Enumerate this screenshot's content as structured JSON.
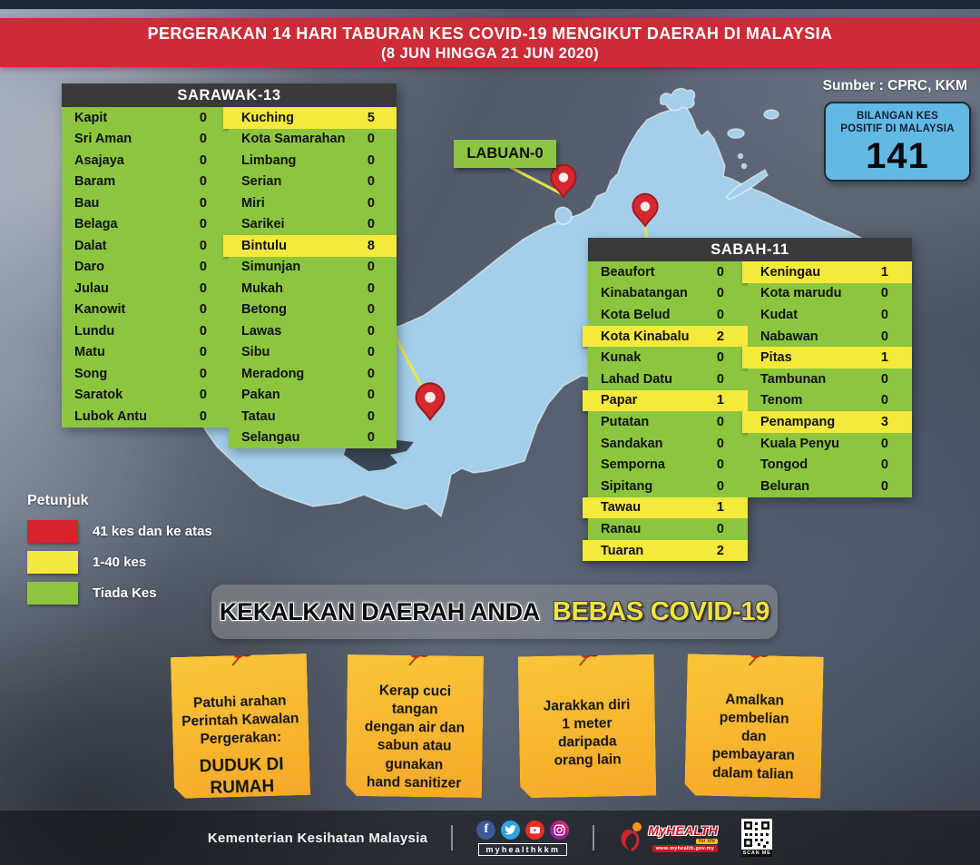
{
  "banner": {
    "line1": "PERGERAKAN 14 HARI TABURAN KES COVID-19 MENGIKUT DAERAH DI MALAYSIA",
    "line2": "(8 JUN HINGGA 21  JUN 2020)"
  },
  "source": "Sumber : CPRC, KKM",
  "total_box": {
    "label": "BILANGAN KES\nPOSITIF DI MALAYSIA",
    "value": "141"
  },
  "labuan_label": "LABUAN-0",
  "tables": {
    "sarawak": {
      "title": "SARAWAK-13",
      "left": [
        {
          "name": "Kapit",
          "value": "0"
        },
        {
          "name": "Sri Aman",
          "value": "0"
        },
        {
          "name": "Asajaya",
          "value": "0"
        },
        {
          "name": "Baram",
          "value": "0"
        },
        {
          "name": "Bau",
          "value": "0"
        },
        {
          "name": "Belaga",
          "value": "0"
        },
        {
          "name": "Dalat",
          "value": "0"
        },
        {
          "name": "Daro",
          "value": "0"
        },
        {
          "name": "Julau",
          "value": "0"
        },
        {
          "name": "Kanowit",
          "value": "0"
        },
        {
          "name": "Lundu",
          "value": "0"
        },
        {
          "name": "Matu",
          "value": "0"
        },
        {
          "name": "Song",
          "value": "0"
        },
        {
          "name": "Saratok",
          "value": "0"
        },
        {
          "name": "Lubok Antu",
          "value": "0"
        }
      ],
      "right": [
        {
          "name": "Kuching",
          "value": "5",
          "hl": true
        },
        {
          "name": "Kota Samarahan",
          "value": "0"
        },
        {
          "name": "Limbang",
          "value": "0"
        },
        {
          "name": "Serian",
          "value": "0"
        },
        {
          "name": "Miri",
          "value": "0"
        },
        {
          "name": "Sarikei",
          "value": "0"
        },
        {
          "name": "Bintulu",
          "value": "8",
          "hl": true
        },
        {
          "name": "Simunjan",
          "value": "0"
        },
        {
          "name": "Mukah",
          "value": "0"
        },
        {
          "name": "Betong",
          "value": "0"
        },
        {
          "name": "Lawas",
          "value": "0"
        },
        {
          "name": "Sibu",
          "value": "0"
        },
        {
          "name": "Meradong",
          "value": "0"
        },
        {
          "name": "Pakan",
          "value": "0"
        },
        {
          "name": "Tatau",
          "value": "0"
        },
        {
          "name": "Selangau",
          "value": "0"
        }
      ]
    },
    "sabah": {
      "title": "SABAH-11",
      "left": [
        {
          "name": "Beaufort",
          "value": "0"
        },
        {
          "name": "Kinabatangan",
          "value": "0"
        },
        {
          "name": "Kota Belud",
          "value": "0"
        },
        {
          "name": "Kota Kinabalu",
          "value": "2",
          "hl": true
        },
        {
          "name": "Kunak",
          "value": "0"
        },
        {
          "name": "Lahad Datu",
          "value": "0"
        },
        {
          "name": "Papar",
          "value": "1",
          "hl": true
        },
        {
          "name": "Putatan",
          "value": "0"
        },
        {
          "name": "Sandakan",
          "value": "0"
        },
        {
          "name": "Semporna",
          "value": "0"
        },
        {
          "name": "Sipitang",
          "value": "0"
        },
        {
          "name": "Tawau",
          "value": "1",
          "hl": true
        },
        {
          "name": "Ranau",
          "value": "0"
        },
        {
          "name": "Tuaran",
          "value": "2",
          "hl": true
        }
      ],
      "right": [
        {
          "name": "Keningau",
          "value": "1",
          "hl": true
        },
        {
          "name": "Kota marudu",
          "value": "0"
        },
        {
          "name": "Kudat",
          "value": "0"
        },
        {
          "name": "Nabawan",
          "value": "0"
        },
        {
          "name": "Pitas",
          "value": "1",
          "hl": true
        },
        {
          "name": "Tambunan",
          "value": "0"
        },
        {
          "name": "Tenom",
          "value": "0"
        },
        {
          "name": "Penampang",
          "value": "3",
          "hl": true
        },
        {
          "name": "Kuala Penyu",
          "value": "0"
        },
        {
          "name": "Tongod",
          "value": "0"
        },
        {
          "name": "Beluran",
          "value": "0"
        }
      ]
    }
  },
  "legend": {
    "title": "Petunjuk",
    "items": [
      {
        "label": "41 kes dan ke atas",
        "color": "#D8232E"
      },
      {
        "label": "1-40 kes",
        "color": "#F2E93B"
      },
      {
        "label": "Tiada Kes",
        "color": "#8CC63F"
      }
    ]
  },
  "cta": {
    "black": "KEKALKAN DAERAH ANDA",
    "yellow": "BEBAS COVID-19"
  },
  "notes": [
    {
      "text": "Patuhi arahan\nPerintah Kawalan\nPergerakan:",
      "emphasis": "DUDUK DI\nRUMAH"
    },
    {
      "text": "Kerap cuci\ntangan\ndengan air dan\nsabun atau\ngunakan\nhand sanitizer"
    },
    {
      "text": "Jarakkan diri\n1 meter\ndaripada\norang lain"
    },
    {
      "text": "Amalkan\npembelian\ndan\npembayaran\ndalam talian"
    }
  ],
  "footer": {
    "ministry": "Kementerian Kesihatan Malaysia",
    "social_icons": [
      "facebook",
      "twitter",
      "youtube",
      "instagram"
    ],
    "social_handle": "myhealthkkm",
    "myhealth": {
      "brand": "MyHEALTH",
      "tagline": "for life",
      "url": "www.myhealth.gov.my"
    },
    "qr_caption": "SCAN ME"
  },
  "colors": {
    "banner_red": "#CE2B36",
    "table_green": "#8CC63F",
    "highlight_yellow": "#F5E93C",
    "map_blue": "#A4CFEA",
    "info_box_blue": "#62B9E4",
    "note_orange": "#F7AE28",
    "pin_red": "#D7282F"
  }
}
